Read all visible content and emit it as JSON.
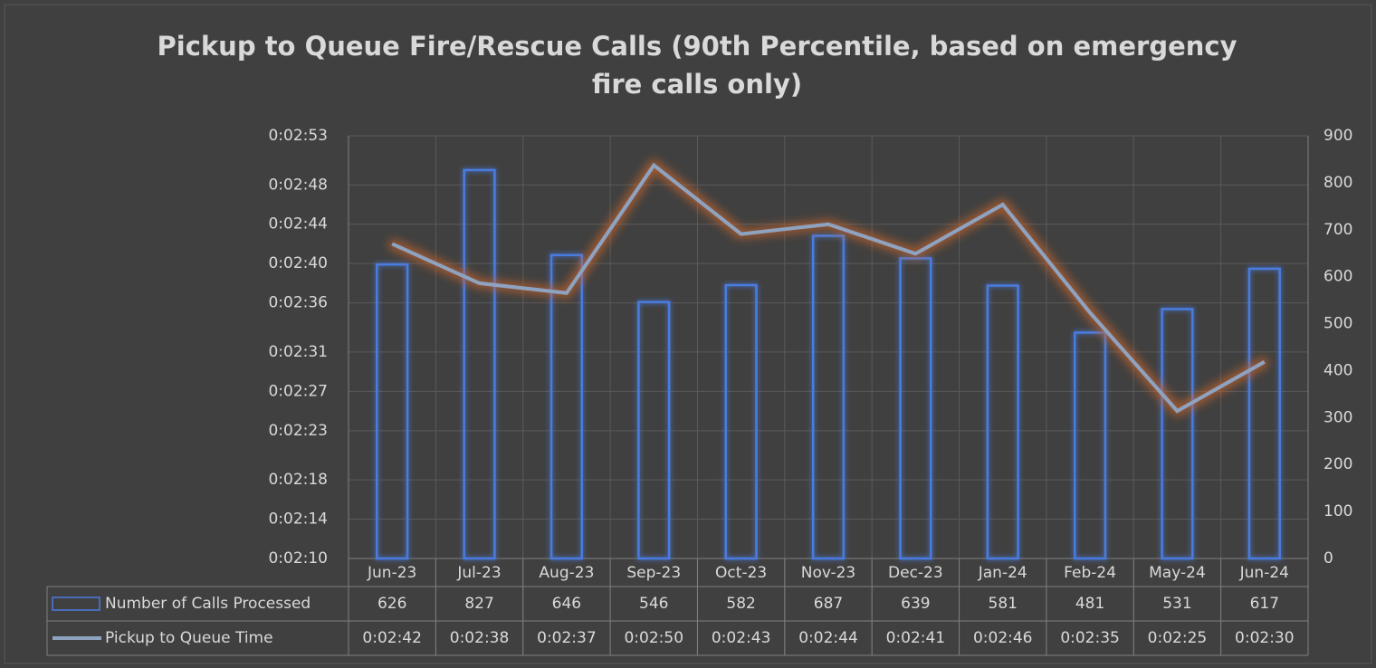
{
  "chart_data": {
    "type": "bar-line",
    "title": "Pickup to Queue Fire/Rescue Calls (90th Percentile, based on emergency fire calls only)",
    "categories": [
      "Jun-23",
      "Jul-23",
      "Aug-23",
      "Sep-23",
      "Oct-23",
      "Nov-23",
      "Dec-23",
      "Jan-24",
      "Feb-24",
      "May-24",
      "Jun-24"
    ],
    "series": [
      {
        "name": "Number of Calls Processed",
        "type": "bar",
        "axis": "y2",
        "color": "#4a7be0",
        "values": [
          626,
          827,
          646,
          546,
          582,
          687,
          639,
          581,
          481,
          531,
          617
        ]
      },
      {
        "name": "Pickup to Queue Time",
        "type": "line",
        "axis": "y",
        "color": "#8ea3c0",
        "values": [
          162,
          158,
          157,
          170,
          163,
          164,
          161,
          166,
          155,
          145,
          150
        ],
        "value_labels": [
          "0:02:42",
          "0:02:38",
          "0:02:37",
          "0:02:50",
          "0:02:43",
          "0:02:44",
          "0:02:41",
          "0:02:46",
          "0:02:35",
          "0:02:25",
          "0:02:30"
        ]
      }
    ],
    "ylim": [
      130,
      173
    ],
    "yticks": [
      {
        "value": 130,
        "label": "0:02:10"
      },
      {
        "value": 134,
        "label": "0:02:14"
      },
      {
        "value": 138,
        "label": "0:02:18"
      },
      {
        "value": 143,
        "label": "0:02:23"
      },
      {
        "value": 147,
        "label": "0:02:27"
      },
      {
        "value": 151,
        "label": "0:02:31"
      },
      {
        "value": 156,
        "label": "0:02:36"
      },
      {
        "value": 160,
        "label": "0:02:40"
      },
      {
        "value": 164,
        "label": "0:02:44"
      },
      {
        "value": 168,
        "label": "0:02:48"
      },
      {
        "value": 173,
        "label": "0:02:53"
      }
    ],
    "y2lim": [
      0,
      900
    ],
    "y2ticks": [
      0,
      100,
      200,
      300,
      400,
      500,
      600,
      700,
      800,
      900
    ],
    "grid": true,
    "data_table": true
  }
}
